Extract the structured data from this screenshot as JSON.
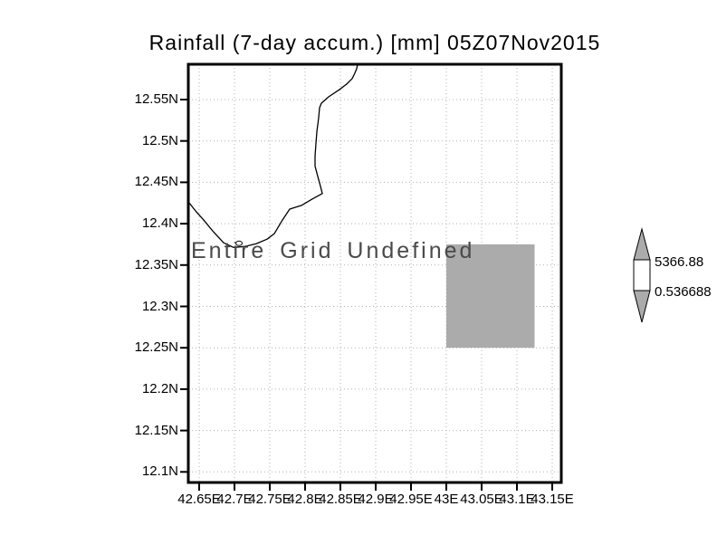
{
  "colors": {
    "shade_gray": "#ababab",
    "grid_gray": "#b0b0b0",
    "line_black": "#000000",
    "background": "#ffffff"
  },
  "chart_data": {
    "type": "heatmap",
    "title": "Rainfall (7-day accum.) [mm] 05Z07Nov2015",
    "annotation": "Entire Grid Undefined",
    "xlabel": "",
    "ylabel": "",
    "grid": "dotted",
    "x_tick_labels": [
      "42.65E",
      "42.7E",
      "42.75E",
      "42.8E",
      "42.85E",
      "42.9E",
      "42.95E",
      "43E",
      "43.05E",
      "43.1E",
      "43.15E"
    ],
    "x_tick_values": [
      42.65,
      42.7,
      42.75,
      42.8,
      42.85,
      42.9,
      42.95,
      43.0,
      43.05,
      43.1,
      43.15
    ],
    "y_tick_labels": [
      "12.55N",
      "12.5N",
      "12.45N",
      "12.4N",
      "12.35N",
      "12.3N",
      "12.25N",
      "12.2N",
      "12.15N",
      "12.1N"
    ],
    "y_tick_values": [
      12.55,
      12.5,
      12.45,
      12.4,
      12.35,
      12.3,
      12.25,
      12.2,
      12.15,
      12.1
    ],
    "xlim": [
      42.635,
      43.162
    ],
    "ylim": [
      12.083,
      12.593
    ],
    "legend_position": "right-colorbar",
    "colorbar": {
      "max": 5366.88,
      "min": 0.536688,
      "max_label": "5366.88",
      "min_label": "0.536688",
      "fill": "#ababab"
    },
    "defined_cells": [
      {
        "lon_min": 43.0,
        "lon_max": 43.125,
        "lat_min": 12.25,
        "lat_max": 12.375,
        "fill": "#ababab"
      }
    ],
    "coastline_lonlat": [
      [
        42.8744,
        12.593
      ],
      [
        42.8731,
        12.5875
      ],
      [
        42.8705,
        12.582
      ],
      [
        42.8667,
        12.5754
      ],
      [
        42.859,
        12.5688
      ],
      [
        42.8487,
        12.5621
      ],
      [
        42.8333,
        12.5533
      ],
      [
        42.8231,
        12.5456
      ],
      [
        42.8205,
        12.5401
      ],
      [
        42.8192,
        12.5279
      ],
      [
        42.8167,
        12.5114
      ],
      [
        42.8154,
        12.4971
      ],
      [
        42.8141,
        12.4816
      ],
      [
        42.8141,
        12.4695
      ],
      [
        42.8179,
        12.4573
      ],
      [
        42.8218,
        12.4452
      ],
      [
        42.8244,
        12.4364
      ],
      [
        42.8103,
        12.4298
      ],
      [
        42.7949,
        12.4221
      ],
      [
        42.7782,
        12.4176
      ],
      [
        42.7679,
        12.4044
      ],
      [
        42.7564,
        12.3879
      ],
      [
        42.7462,
        12.3813
      ],
      [
        42.7308,
        12.3758
      ],
      [
        42.7141,
        12.3724
      ],
      [
        42.6987,
        12.3713
      ],
      [
        42.6846,
        12.3769
      ],
      [
        42.6692,
        12.3912
      ],
      [
        42.6564,
        12.4044
      ],
      [
        42.6449,
        12.4154
      ],
      [
        42.6346,
        12.4265
      ]
    ],
    "islands": [
      {
        "lon": 42.7064,
        "lat": 12.3763
      }
    ]
  }
}
